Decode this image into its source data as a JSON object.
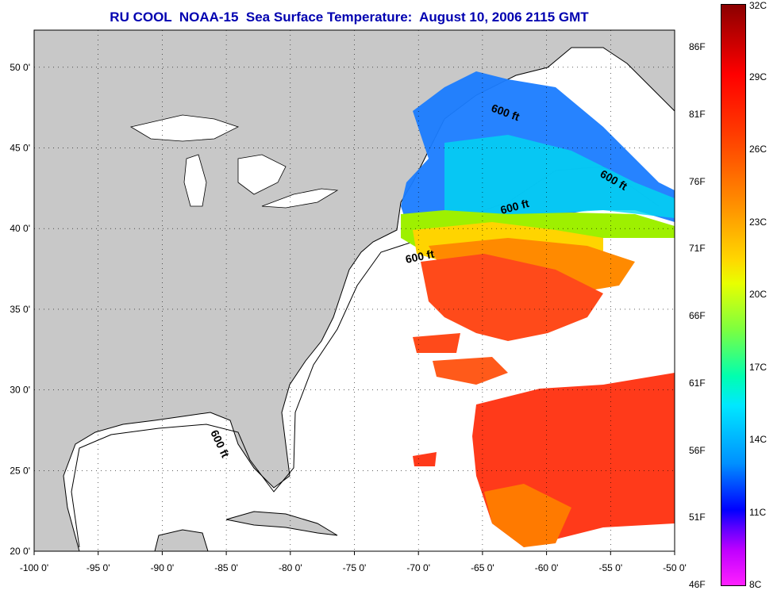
{
  "title": "RU COOL  NOAA-15  Sea Surface Temperature:  August 10, 2006 2115 GMT",
  "map": {
    "lon_ticks": [
      "-100 0'",
      "-95 0'",
      "-90 0'",
      "-85 0'",
      "-80 0'",
      "-75 0'",
      "-70 0'",
      "-65 0'",
      "-60 0'",
      "-55 0'",
      "-50 0'"
    ],
    "lat_ticks": [
      "50 0'",
      "45 0'",
      "40 0'",
      "35 0'",
      "30 0'",
      "25 0'",
      "20 0'"
    ],
    "contour_labels": [
      "600 ft",
      "600 ft",
      "600 ft",
      "600 ft",
      "600 ft"
    ],
    "colors": {
      "land": "#c8c8c8",
      "ocean": "#ffffff",
      "grid": "#000000"
    }
  },
  "colorbar": {
    "celsius": [
      "32C",
      "29C",
      "26C",
      "23C",
      "20C",
      "17C",
      "14C",
      "11C",
      "8C"
    ],
    "fahrenheit": [
      "86F",
      "81F",
      "76F",
      "71F",
      "66F",
      "61F",
      "56F",
      "51F",
      "46F"
    ]
  }
}
